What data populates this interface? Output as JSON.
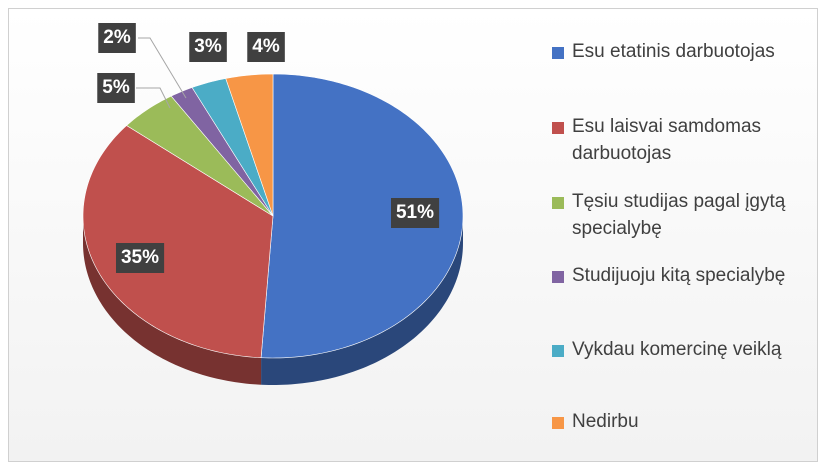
{
  "chart_data": {
    "type": "pie",
    "categories": [
      "Esu etatinis darbuotojas",
      "Esu laisvai samdomas darbuotojas",
      "Tęsiu studijas pagal įgytą specialybę",
      "Studijuoju kitą specialybę",
      "Vykdau komercinę veiklą",
      "Nedirbu"
    ],
    "values": [
      51,
      35,
      5,
      2,
      3,
      4
    ],
    "value_labels": [
      "51%",
      "35%",
      "5%",
      "2%",
      "3%",
      "4%"
    ],
    "colors": [
      "#4472c4",
      "#c0504d",
      "#9bbb59",
      "#8064a2",
      "#4bacc6",
      "#f79646"
    ],
    "legend": "right"
  }
}
